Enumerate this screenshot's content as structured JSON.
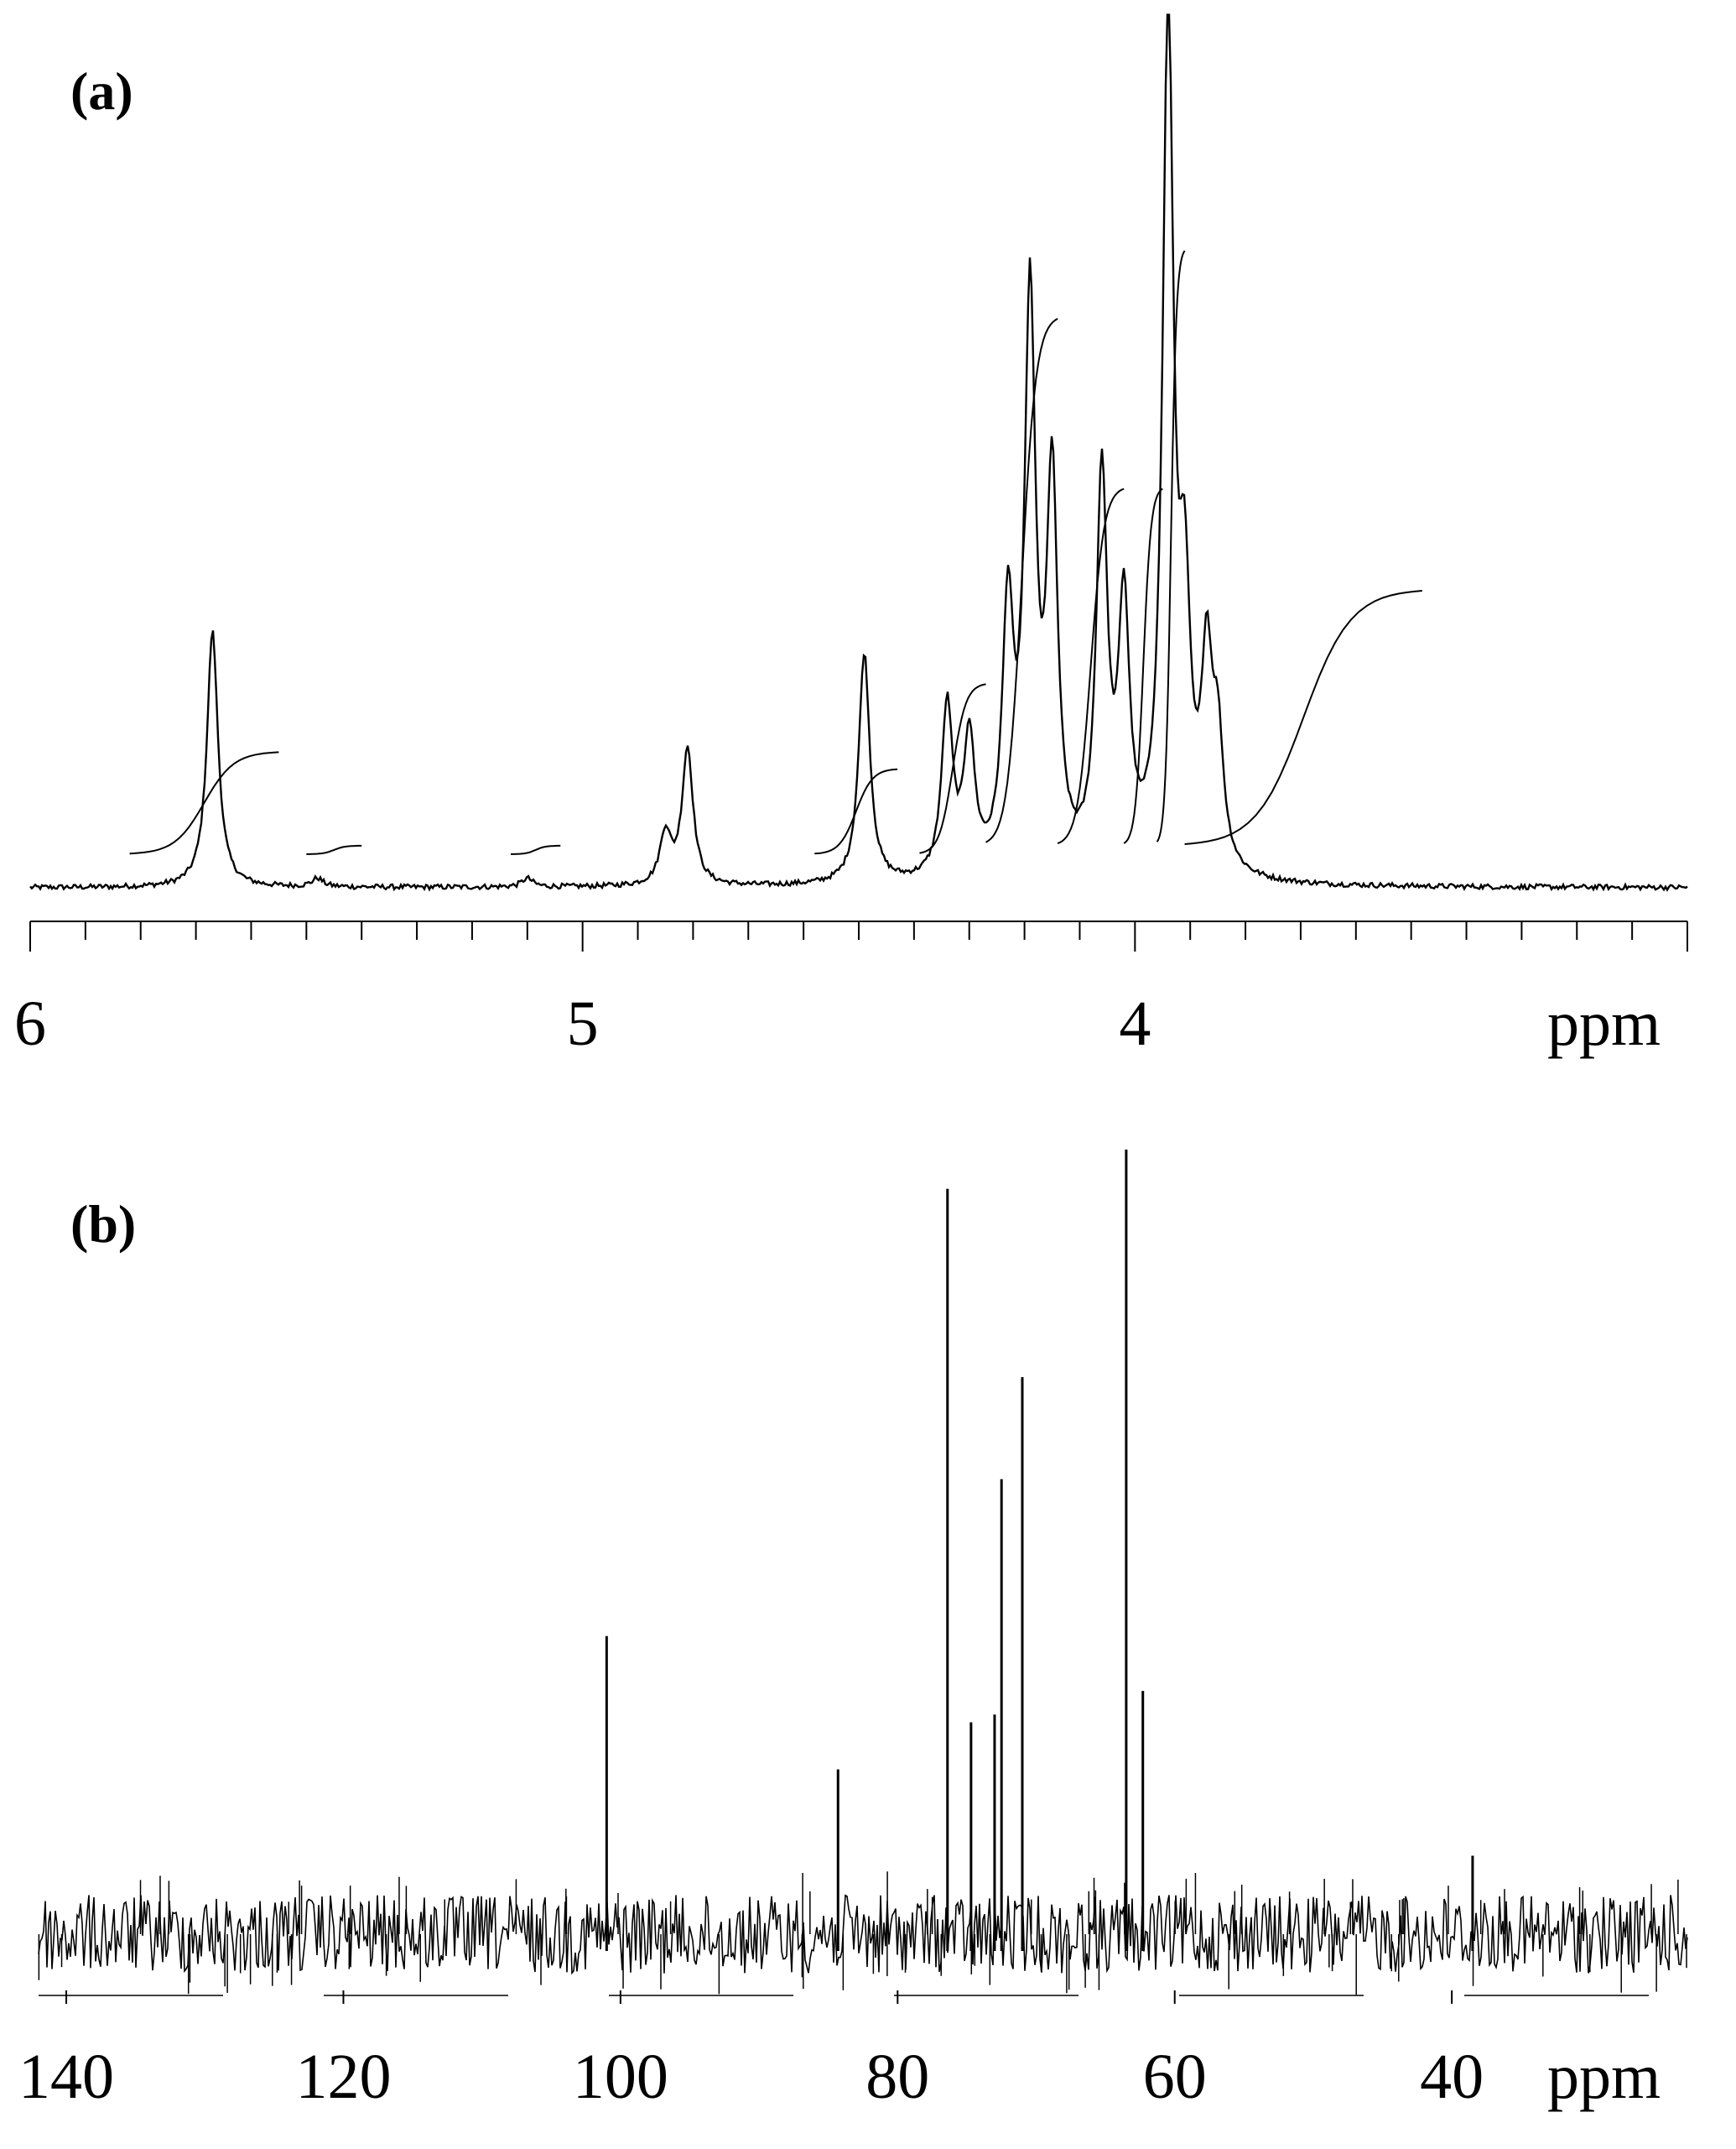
{
  "chart_data": [
    {
      "type": "line",
      "panel_label": "(a)",
      "xlabel": "ppm",
      "ylabel": "",
      "x_reversed": true,
      "xlim": [
        6,
        3
      ],
      "tick_labels": [
        "6",
        "5",
        "4"
      ],
      "minor_tick_step": 0.1,
      "peaks": [
        {
          "ppm": 5.67,
          "height": 0.3
        },
        {
          "ppm": 5.48,
          "height": 0.01
        },
        {
          "ppm": 5.1,
          "height": 0.01
        },
        {
          "ppm": 4.85,
          "height": 0.06
        },
        {
          "ppm": 4.81,
          "height": 0.16
        },
        {
          "ppm": 4.49,
          "height": 0.27
        },
        {
          "ppm": 4.34,
          "height": 0.2
        },
        {
          "ppm": 4.3,
          "height": 0.16
        },
        {
          "ppm": 4.23,
          "height": 0.3
        },
        {
          "ppm": 4.19,
          "height": 0.66
        },
        {
          "ppm": 4.15,
          "height": 0.45
        },
        {
          "ppm": 4.06,
          "height": 0.46
        },
        {
          "ppm": 4.02,
          "height": 0.3
        },
        {
          "ppm": 3.94,
          "height": 1.0
        },
        {
          "ppm": 3.91,
          "height": 0.28
        },
        {
          "ppm": 3.87,
          "height": 0.23
        },
        {
          "ppm": 3.85,
          "height": 0.14
        }
      ],
      "integrals": [
        {
          "from": 5.82,
          "to": 5.55,
          "rise": 0.12
        },
        {
          "from": 5.5,
          "to": 5.4,
          "rise": 0.01
        },
        {
          "from": 5.13,
          "to": 5.04,
          "rise": 0.01
        },
        {
          "from": 4.58,
          "to": 4.43,
          "rise": 0.1
        },
        {
          "from": 4.39,
          "to": 4.27,
          "rise": 0.2
        },
        {
          "from": 4.27,
          "to": 4.14,
          "rise": 0.62
        },
        {
          "from": 4.14,
          "to": 4.02,
          "rise": 0.42
        },
        {
          "from": 4.02,
          "to": 3.95,
          "rise": 0.42
        },
        {
          "from": 3.96,
          "to": 3.91,
          "rise": 0.7
        },
        {
          "from": 3.91,
          "to": 3.48,
          "rise": 0.3
        }
      ]
    },
    {
      "type": "line",
      "panel_label": "(b)",
      "xlabel": "ppm",
      "ylabel": "",
      "x_reversed": true,
      "xlim": [
        142,
        23
      ],
      "tick_labels": [
        "140",
        "120",
        "100",
        "80",
        "60",
        "40"
      ],
      "tick_values": [
        140,
        120,
        100,
        80,
        60,
        40
      ],
      "peaks": [
        {
          "ppm": 101.0,
          "height": 0.38
        },
        {
          "ppm": 84.3,
          "height": 0.21
        },
        {
          "ppm": 76.4,
          "height": 0.95
        },
        {
          "ppm": 74.7,
          "height": 0.27
        },
        {
          "ppm": 73.0,
          "height": 0.28
        },
        {
          "ppm": 72.5,
          "height": 0.58
        },
        {
          "ppm": 71.0,
          "height": 0.71
        },
        {
          "ppm": 63.5,
          "height": 1.0
        },
        {
          "ppm": 62.3,
          "height": 0.31
        },
        {
          "ppm": 38.5,
          "height": 0.1
        }
      ],
      "noise_amplitude": 0.05
    }
  ]
}
